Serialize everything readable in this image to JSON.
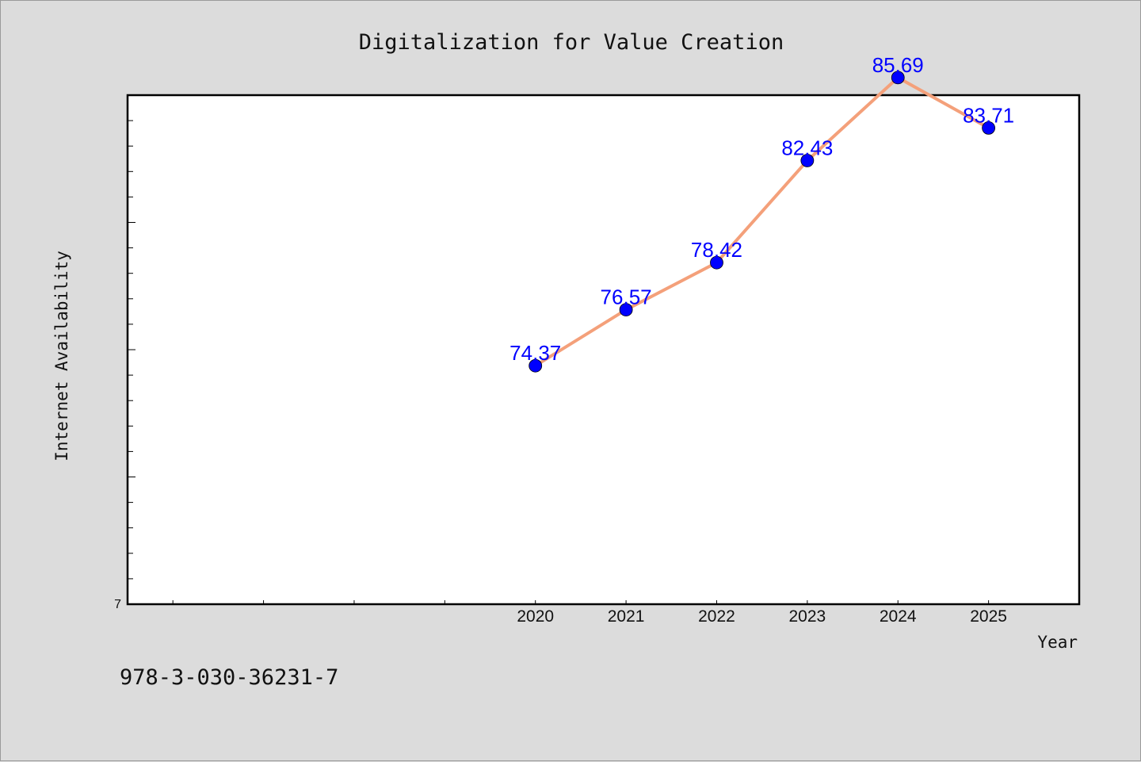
{
  "chart_data": {
    "type": "line",
    "title": "Digitalization for Value Creation",
    "xlabel": "Year",
    "ylabel": "Internet Availability",
    "x": [
      2020,
      2021,
      2022,
      2023,
      2024,
      2025
    ],
    "categories": [
      "2020",
      "2021",
      "2022",
      "2023",
      "2024",
      "2025"
    ],
    "series": [
      {
        "values": [
          74.37,
          76.57,
          78.42,
          82.43,
          85.69,
          83.71
        ],
        "labels": [
          "74.37",
          "76.57",
          "78.42",
          "82.43",
          "85.69",
          "83.71"
        ],
        "line_color": "#f4a07a",
        "marker_color": "#0000ff"
      }
    ],
    "xlim": [
      2015.5,
      2026.0
    ],
    "ylim": [
      65.0,
      85.0
    ],
    "y_visible_tick_label": "7",
    "grid": false,
    "legend": "none"
  },
  "footnote": "978-3-030-36231-7",
  "colors": {
    "background": "#dcdcdc",
    "plot_area": "#ffffff",
    "line": "#f4a07a",
    "marker": "#0000ff",
    "data_label": "#0000ff"
  }
}
